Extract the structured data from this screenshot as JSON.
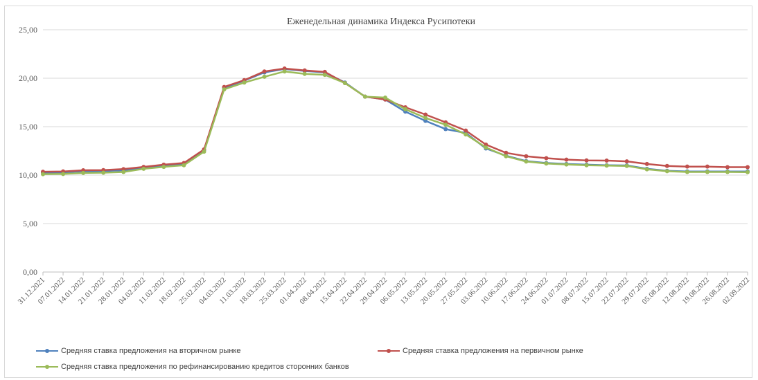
{
  "chart_data": {
    "type": "line",
    "title": "Еженедельная динамика Индекса Русипотеки",
    "xlabel": "",
    "ylabel": "",
    "ylim": [
      0,
      25
    ],
    "yticks": [
      "0,00",
      "5,00",
      "10,00",
      "15,00",
      "20,00",
      "25,00"
    ],
    "grid": true,
    "legend_position": "bottom",
    "categories": [
      "31.12.2021",
      "07.01.2022",
      "14.01.2022",
      "21.01.2022",
      "28.01.2022",
      "04.02.2022",
      "11.02.2022",
      "18.02.2022",
      "25.02.2022",
      "04.03.2022",
      "11.03.2022",
      "18.03.2022",
      "25.03.2022",
      "01.04.2022",
      "08.04.2022",
      "15.04.2022",
      "22.04.2022",
      "29.04.2022",
      "06.05.2022",
      "13.05.2022",
      "20.05.2022",
      "27.05.2022",
      "03.06.2022",
      "10.06.2022",
      "17.06.2022",
      "24.06.2022",
      "01.07.2022",
      "08.07.2022",
      "15.07.2022",
      "22.07.2022",
      "29.07.2022",
      "05.08.2022",
      "12.08.2022",
      "19.08.2022",
      "26.08.2022",
      "02.09.2022"
    ],
    "series": [
      {
        "name": "Средняя ставка предложения на вторичном рынке",
        "color": "#4f81bd",
        "values": [
          10.25,
          10.28,
          10.4,
          10.42,
          10.5,
          10.75,
          10.98,
          11.15,
          12.55,
          19.0,
          19.75,
          20.6,
          20.95,
          20.75,
          20.6,
          19.55,
          18.1,
          17.8,
          16.55,
          15.6,
          14.75,
          14.35,
          12.75,
          12.0,
          11.45,
          11.25,
          11.15,
          11.08,
          11.02,
          11.0,
          10.65,
          10.45,
          10.38,
          10.38,
          10.38,
          10.38
        ]
      },
      {
        "name": "Средняя ставка предложения на первичном рынке",
        "color": "#c0504d",
        "values": [
          10.35,
          10.38,
          10.5,
          10.52,
          10.62,
          10.85,
          11.08,
          11.25,
          12.65,
          19.1,
          19.8,
          20.7,
          21.0,
          20.8,
          20.65,
          19.5,
          18.1,
          17.8,
          17.0,
          16.25,
          15.45,
          14.6,
          13.15,
          12.3,
          11.95,
          11.75,
          11.6,
          11.52,
          11.5,
          11.42,
          11.15,
          10.95,
          10.88,
          10.88,
          10.82,
          10.82
        ]
      },
      {
        "name": "Средняя ставка предложения по рефинансированию кредитов сторонних банков",
        "color": "#9bbb59",
        "values": [
          10.1,
          10.12,
          10.22,
          10.25,
          10.32,
          10.65,
          10.85,
          11.02,
          12.42,
          18.85,
          19.55,
          20.15,
          20.7,
          20.45,
          20.35,
          19.5,
          18.1,
          18.0,
          16.8,
          15.9,
          15.2,
          14.2,
          12.85,
          11.95,
          11.4,
          11.2,
          11.1,
          11.02,
          10.98,
          10.95,
          10.6,
          10.4,
          10.32,
          10.32,
          10.32,
          10.3
        ]
      }
    ]
  }
}
